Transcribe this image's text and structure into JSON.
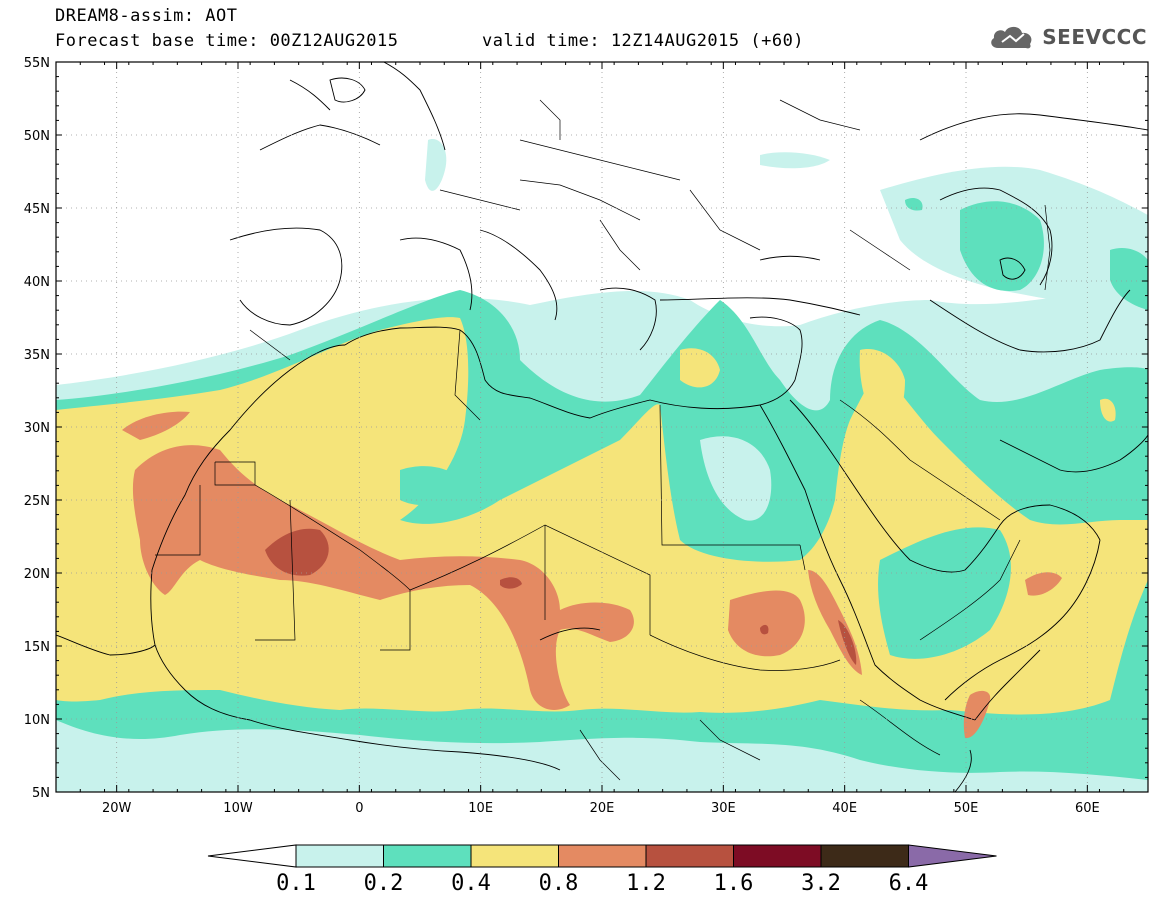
{
  "title": {
    "model": "DREAM8-assim: AOT",
    "base_time": "Forecast base time: 00Z12AUG2015",
    "valid_time": "valid time: 12Z14AUG2015 (+60)"
  },
  "logo": {
    "text": "SEEVCCC",
    "icon": "cloud-icon"
  },
  "axes": {
    "lat_labels": [
      "55N",
      "50N",
      "45N",
      "40N",
      "35N",
      "30N",
      "25N",
      "20N",
      "15N",
      "10N",
      "5N"
    ],
    "lon_labels": [
      "20W",
      "10W",
      "0",
      "10E",
      "20E",
      "30E",
      "40E",
      "50E",
      "60E"
    ],
    "lat_range": [
      5,
      55
    ],
    "lon_range": [
      -25,
      65
    ],
    "grid": "dotted"
  },
  "legend": {
    "labels": [
      "0.1",
      "0.2",
      "0.4",
      "0.8",
      "1.2",
      "1.6",
      "3.2",
      "6.4"
    ],
    "colors": [
      "#c8f2ec",
      "#5ee0bd",
      "#f5e47a",
      "#e48a62",
      "#b7513f",
      "#7d0c24",
      "#3d2a18",
      "#8a6aa8"
    ],
    "under_color": "#ffffff"
  },
  "field": {
    "variable": "Aerosol Optical Thickness",
    "levels": [
      0.1,
      0.2,
      0.4,
      0.8,
      1.2,
      1.6,
      3.2,
      6.4
    ]
  }
}
